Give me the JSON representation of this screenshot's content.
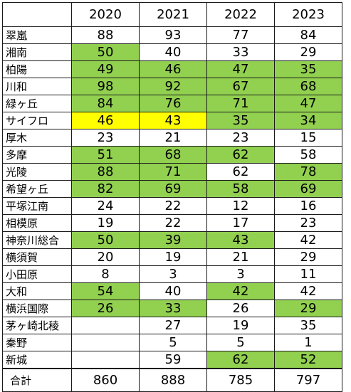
{
  "headers": [
    "",
    "2020",
    "2021",
    "2022",
    "2023"
  ],
  "colors": {
    "green": "#92d050",
    "yellow": "#ffff00"
  },
  "rows": [
    {
      "name": "翠嵐",
      "values": [
        "88",
        "93",
        "77",
        "84"
      ],
      "hl": [
        "",
        "",
        "",
        ""
      ]
    },
    {
      "name": "湘南",
      "values": [
        "50",
        "40",
        "33",
        "29"
      ],
      "hl": [
        "g",
        "",
        "",
        ""
      ]
    },
    {
      "name": "柏陽",
      "values": [
        "49",
        "46",
        "47",
        "35"
      ],
      "hl": [
        "g",
        "g",
        "g",
        "g"
      ]
    },
    {
      "name": "川和",
      "values": [
        "98",
        "92",
        "67",
        "68"
      ],
      "hl": [
        "g",
        "g",
        "g",
        "g"
      ]
    },
    {
      "name": "緑ヶ丘",
      "values": [
        "84",
        "76",
        "71",
        "47"
      ],
      "hl": [
        "g",
        "g",
        "g",
        "g"
      ]
    },
    {
      "name": "サイフロ",
      "values": [
        "46",
        "43",
        "35",
        "34"
      ],
      "hl": [
        "y",
        "y",
        "g",
        "g"
      ]
    },
    {
      "name": "厚木",
      "values": [
        "23",
        "21",
        "23",
        "15"
      ],
      "hl": [
        "",
        "",
        "",
        ""
      ]
    },
    {
      "name": "多摩",
      "values": [
        "51",
        "68",
        "62",
        "58"
      ],
      "hl": [
        "g",
        "g",
        "g",
        ""
      ]
    },
    {
      "name": "光陵",
      "values": [
        "88",
        "71",
        "62",
        "78"
      ],
      "hl": [
        "g",
        "g",
        "",
        "g"
      ]
    },
    {
      "name": "希望ヶ丘",
      "values": [
        "82",
        "69",
        "58",
        "69"
      ],
      "hl": [
        "g",
        "g",
        "g",
        "g"
      ]
    },
    {
      "name": "平塚江南",
      "values": [
        "24",
        "22",
        "12",
        "16"
      ],
      "hl": [
        "",
        "",
        "",
        ""
      ]
    },
    {
      "name": "相模原",
      "values": [
        "19",
        "22",
        "17",
        "23"
      ],
      "hl": [
        "",
        "",
        "",
        ""
      ]
    },
    {
      "name": "神奈川総合",
      "values": [
        "50",
        "39",
        "43",
        "42"
      ],
      "hl": [
        "g",
        "g",
        "g",
        ""
      ]
    },
    {
      "name": "横須賀",
      "values": [
        "20",
        "19",
        "21",
        "29"
      ],
      "hl": [
        "",
        "",
        "",
        ""
      ]
    },
    {
      "name": "小田原",
      "values": [
        "8",
        "3",
        "3",
        "11"
      ],
      "hl": [
        "",
        "",
        "",
        ""
      ]
    },
    {
      "name": "大和",
      "values": [
        "54",
        "40",
        "42",
        "42"
      ],
      "hl": [
        "g",
        "",
        "g",
        ""
      ]
    },
    {
      "name": "横浜国際",
      "values": [
        "26",
        "33",
        "26",
        "29"
      ],
      "hl": [
        "g",
        "g",
        "",
        "g"
      ]
    },
    {
      "name": "茅ヶ崎北稜",
      "values": [
        "",
        "27",
        "19",
        "35"
      ],
      "hl": [
        "",
        "",
        "",
        ""
      ]
    },
    {
      "name": "秦野",
      "values": [
        "",
        "5",
        "5",
        "1"
      ],
      "hl": [
        "",
        "",
        "",
        ""
      ]
    },
    {
      "name": "新城",
      "values": [
        "",
        "59",
        "62",
        "52"
      ],
      "hl": [
        "",
        "",
        "g",
        "g"
      ]
    }
  ],
  "total": {
    "name": "合計",
    "values": [
      "860",
      "888",
      "785",
      "797"
    ]
  }
}
